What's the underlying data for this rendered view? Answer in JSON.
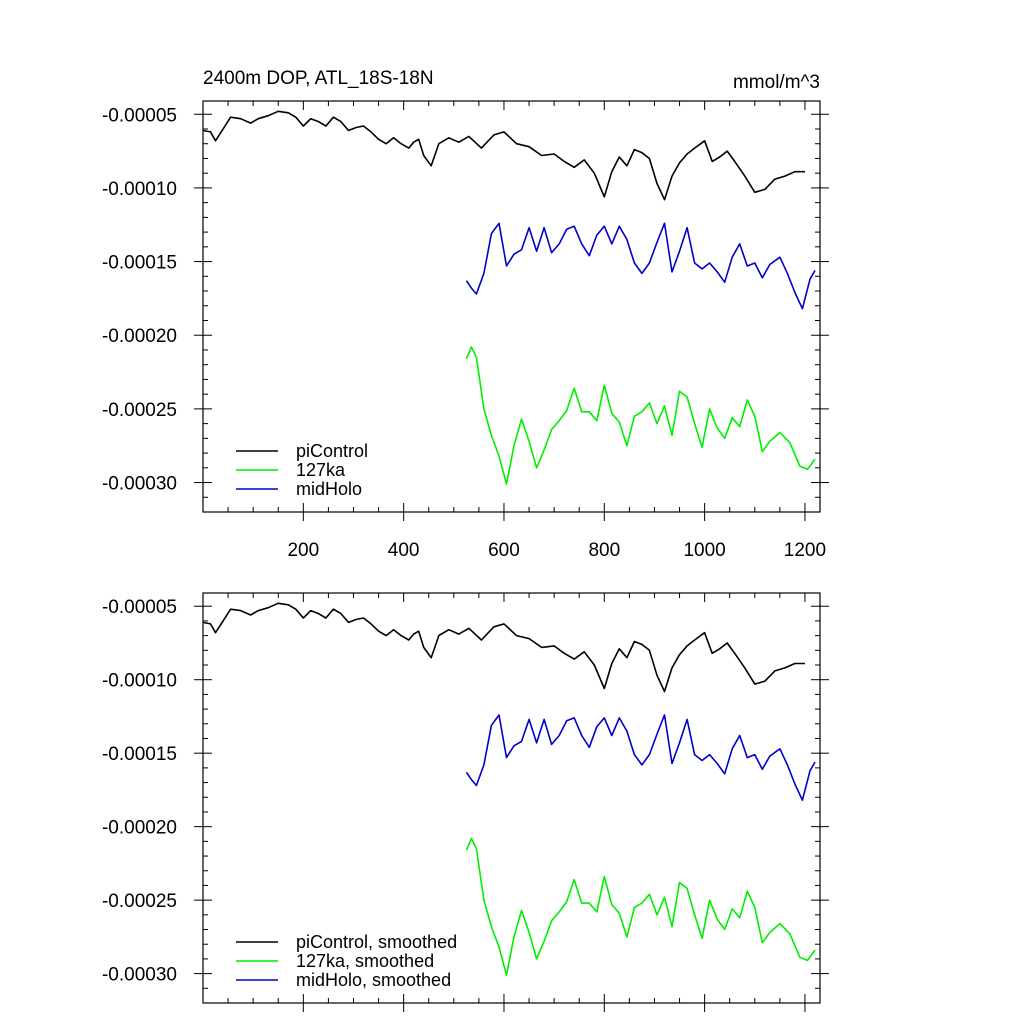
{
  "chart_data": [
    {
      "type": "line",
      "title": "2400m DOP, ATL_18S-18N",
      "units": "mmol/m^3",
      "xlabel": "",
      "ylabel": "",
      "xlim": [
        0,
        1230
      ],
      "ylim": [
        -0.00032,
        -4.1e-05
      ],
      "xticks": [
        200,
        400,
        600,
        800,
        1000,
        1200
      ],
      "xtick_labels": [
        "200",
        "400",
        "600",
        "800",
        "1000",
        "1200"
      ],
      "yticks": [
        -5e-05,
        -0.0001,
        -0.00015,
        -0.0002,
        -0.00025,
        -0.0003
      ],
      "ytick_labels": [
        "-0.00005",
        "-0.00010",
        "-0.00015",
        "-0.00020",
        "-0.00025",
        "-0.00030"
      ],
      "grid": false,
      "legend_position": "bottom-left",
      "series": [
        {
          "name": "piControl",
          "color": "#000000",
          "x": [
            0,
            15,
            25,
            40,
            55,
            75,
            95,
            110,
            130,
            150,
            170,
            185,
            200,
            215,
            230,
            245,
            260,
            275,
            290,
            305,
            320,
            335,
            350,
            365,
            380,
            395,
            410,
            420,
            430,
            440,
            455,
            470,
            490,
            510,
            530,
            555,
            580,
            600,
            625,
            650,
            675,
            700,
            720,
            740,
            760,
            780,
            800,
            815,
            830,
            845,
            860,
            875,
            890,
            905,
            920,
            935,
            950,
            965,
            980,
            1000,
            1015,
            1030,
            1045,
            1060,
            1080,
            1100,
            1120,
            1140,
            1160,
            1180,
            1200
          ],
          "y": [
            -6.1e-05,
            -6.2e-05,
            -6.8e-05,
            -6e-05,
            -5.2e-05,
            -5.3e-05,
            -5.6e-05,
            -5.3e-05,
            -5.1e-05,
            -4.8e-05,
            -4.9e-05,
            -5.2e-05,
            -5.8e-05,
            -5.3e-05,
            -5.5e-05,
            -5.8e-05,
            -5.2e-05,
            -5.5e-05,
            -6.1e-05,
            -5.9e-05,
            -5.8e-05,
            -6.2e-05,
            -6.7e-05,
            -7e-05,
            -6.6e-05,
            -7e-05,
            -7.3e-05,
            -6.9e-05,
            -6.7e-05,
            -7.8e-05,
            -8.5e-05,
            -7e-05,
            -6.6e-05,
            -6.9e-05,
            -6.5e-05,
            -7.3e-05,
            -6.4e-05,
            -6.2e-05,
            -7e-05,
            -7.2e-05,
            -7.8e-05,
            -7.7e-05,
            -8.2e-05,
            -8.6e-05,
            -8.1e-05,
            -9e-05,
            -0.000106,
            -8.9e-05,
            -7.9e-05,
            -8.5e-05,
            -7.4e-05,
            -7.6e-05,
            -8e-05,
            -9.7e-05,
            -0.000108,
            -9.2e-05,
            -8.3e-05,
            -7.7e-05,
            -7.3e-05,
            -6.8e-05,
            -8.2e-05,
            -7.9e-05,
            -7.5e-05,
            -8.2e-05,
            -9.2e-05,
            -0.000103,
            -0.000101,
            -9.4e-05,
            -9.2e-05,
            -8.9e-05,
            -8.9e-05
          ]
        },
        {
          "name": "127ka",
          "color": "#00ee00",
          "x": [
            525,
            535,
            545,
            560,
            575,
            590,
            605,
            620,
            635,
            650,
            665,
            680,
            695,
            710,
            725,
            740,
            755,
            770,
            785,
            800,
            815,
            830,
            845,
            860,
            875,
            890,
            905,
            920,
            935,
            950,
            965,
            980,
            995,
            1010,
            1025,
            1040,
            1055,
            1070,
            1085,
            1100,
            1115,
            1130,
            1150,
            1170,
            1190,
            1205,
            1220
          ],
          "y": [
            -0.000216,
            -0.000208,
            -0.000215,
            -0.00025,
            -0.000268,
            -0.000282,
            -0.000301,
            -0.000275,
            -0.000257,
            -0.000272,
            -0.00029,
            -0.000278,
            -0.000264,
            -0.000258,
            -0.000251,
            -0.000236,
            -0.000252,
            -0.000252,
            -0.000258,
            -0.000234,
            -0.000253,
            -0.000259,
            -0.000275,
            -0.000255,
            -0.000252,
            -0.000246,
            -0.00026,
            -0.000248,
            -0.000268,
            -0.000238,
            -0.000242,
            -0.00026,
            -0.000276,
            -0.00025,
            -0.000263,
            -0.00027,
            -0.000256,
            -0.000262,
            -0.000244,
            -0.000255,
            -0.000279,
            -0.000272,
            -0.000266,
            -0.000273,
            -0.000289,
            -0.000291,
            -0.000284
          ]
        },
        {
          "name": "midHolo",
          "color": "#0000cc",
          "x": [
            525,
            535,
            545,
            560,
            575,
            590,
            605,
            620,
            635,
            650,
            665,
            680,
            695,
            710,
            725,
            740,
            755,
            770,
            785,
            800,
            815,
            830,
            845,
            860,
            875,
            890,
            905,
            920,
            935,
            950,
            965,
            980,
            995,
            1010,
            1025,
            1040,
            1055,
            1070,
            1085,
            1100,
            1115,
            1130,
            1150,
            1165,
            1180,
            1195,
            1210,
            1220
          ],
          "y": [
            -0.000163,
            -0.000168,
            -0.000172,
            -0.000158,
            -0.000131,
            -0.000124,
            -0.000153,
            -0.000145,
            -0.000142,
            -0.000127,
            -0.000143,
            -0.000127,
            -0.000144,
            -0.000138,
            -0.000128,
            -0.000126,
            -0.000138,
            -0.000146,
            -0.000132,
            -0.000126,
            -0.000138,
            -0.000126,
            -0.000135,
            -0.000151,
            -0.000158,
            -0.000151,
            -0.000137,
            -0.000124,
            -0.000157,
            -0.000143,
            -0.000127,
            -0.000151,
            -0.000155,
            -0.000151,
            -0.000157,
            -0.000164,
            -0.000147,
            -0.000138,
            -0.000153,
            -0.000151,
            -0.000161,
            -0.000152,
            -0.000147,
            -0.000158,
            -0.000171,
            -0.000182,
            -0.000162,
            -0.000156
          ]
        }
      ]
    },
    {
      "type": "line",
      "title": "",
      "xlabel": "",
      "ylabel": "",
      "xlim": [
        0,
        1230
      ],
      "ylim": [
        -0.00032,
        -4.1e-05
      ],
      "xticks": [
        200,
        400,
        600,
        800,
        1000,
        1200
      ],
      "yticks": [
        -5e-05,
        -0.0001,
        -0.00015,
        -0.0002,
        -0.00025,
        -0.0003
      ],
      "ytick_labels": [
        "-0.00005",
        "-0.00010",
        "-0.00015",
        "-0.00020",
        "-0.00025",
        "-0.00030"
      ],
      "grid": false,
      "legend_position": "bottom-left",
      "series": [
        {
          "name": "piControl, smoothed",
          "color": "#000000",
          "x": [
            0,
            15,
            25,
            40,
            55,
            75,
            95,
            110,
            130,
            150,
            170,
            185,
            200,
            215,
            230,
            245,
            260,
            275,
            290,
            305,
            320,
            335,
            350,
            365,
            380,
            395,
            410,
            420,
            430,
            440,
            455,
            470,
            490,
            510,
            530,
            555,
            580,
            600,
            625,
            650,
            675,
            700,
            720,
            740,
            760,
            780,
            800,
            815,
            830,
            845,
            860,
            875,
            890,
            905,
            920,
            935,
            950,
            965,
            980,
            1000,
            1015,
            1030,
            1045,
            1060,
            1080,
            1100,
            1120,
            1140,
            1160,
            1180,
            1200
          ],
          "y": [
            -6.1e-05,
            -6.2e-05,
            -6.8e-05,
            -6e-05,
            -5.2e-05,
            -5.3e-05,
            -5.6e-05,
            -5.3e-05,
            -5.1e-05,
            -4.8e-05,
            -4.9e-05,
            -5.2e-05,
            -5.8e-05,
            -5.3e-05,
            -5.5e-05,
            -5.8e-05,
            -5.2e-05,
            -5.5e-05,
            -6.1e-05,
            -5.9e-05,
            -5.8e-05,
            -6.2e-05,
            -6.7e-05,
            -7e-05,
            -6.6e-05,
            -7e-05,
            -7.3e-05,
            -6.9e-05,
            -6.7e-05,
            -7.8e-05,
            -8.5e-05,
            -7e-05,
            -6.6e-05,
            -6.9e-05,
            -6.5e-05,
            -7.3e-05,
            -6.4e-05,
            -6.2e-05,
            -7e-05,
            -7.2e-05,
            -7.8e-05,
            -7.7e-05,
            -8.2e-05,
            -8.6e-05,
            -8.1e-05,
            -9e-05,
            -0.000106,
            -8.9e-05,
            -7.9e-05,
            -8.5e-05,
            -7.4e-05,
            -7.6e-05,
            -8e-05,
            -9.7e-05,
            -0.000108,
            -9.2e-05,
            -8.3e-05,
            -7.7e-05,
            -7.3e-05,
            -6.8e-05,
            -8.2e-05,
            -7.9e-05,
            -7.5e-05,
            -8.2e-05,
            -9.2e-05,
            -0.000103,
            -0.000101,
            -9.4e-05,
            -9.2e-05,
            -8.9e-05,
            -8.9e-05
          ]
        },
        {
          "name": "127ka, smoothed",
          "color": "#00ee00",
          "x": [
            525,
            535,
            545,
            560,
            575,
            590,
            605,
            620,
            635,
            650,
            665,
            680,
            695,
            710,
            725,
            740,
            755,
            770,
            785,
            800,
            815,
            830,
            845,
            860,
            875,
            890,
            905,
            920,
            935,
            950,
            965,
            980,
            995,
            1010,
            1025,
            1040,
            1055,
            1070,
            1085,
            1100,
            1115,
            1130,
            1150,
            1170,
            1190,
            1205,
            1220
          ],
          "y": [
            -0.000216,
            -0.000208,
            -0.000215,
            -0.00025,
            -0.000268,
            -0.000282,
            -0.000301,
            -0.000275,
            -0.000257,
            -0.000272,
            -0.00029,
            -0.000278,
            -0.000264,
            -0.000258,
            -0.000251,
            -0.000236,
            -0.000252,
            -0.000252,
            -0.000258,
            -0.000234,
            -0.000253,
            -0.000259,
            -0.000275,
            -0.000255,
            -0.000252,
            -0.000246,
            -0.00026,
            -0.000248,
            -0.000268,
            -0.000238,
            -0.000242,
            -0.00026,
            -0.000276,
            -0.00025,
            -0.000263,
            -0.00027,
            -0.000256,
            -0.000262,
            -0.000244,
            -0.000255,
            -0.000279,
            -0.000272,
            -0.000266,
            -0.000273,
            -0.000289,
            -0.000291,
            -0.000284
          ]
        },
        {
          "name": "midHolo, smoothed",
          "color": "#0000cc",
          "x": [
            525,
            535,
            545,
            560,
            575,
            590,
            605,
            620,
            635,
            650,
            665,
            680,
            695,
            710,
            725,
            740,
            755,
            770,
            785,
            800,
            815,
            830,
            845,
            860,
            875,
            890,
            905,
            920,
            935,
            950,
            965,
            980,
            995,
            1010,
            1025,
            1040,
            1055,
            1070,
            1085,
            1100,
            1115,
            1130,
            1150,
            1165,
            1180,
            1195,
            1210,
            1220
          ],
          "y": [
            -0.000163,
            -0.000168,
            -0.000172,
            -0.000158,
            -0.000131,
            -0.000124,
            -0.000153,
            -0.000145,
            -0.000142,
            -0.000127,
            -0.000143,
            -0.000127,
            -0.000144,
            -0.000138,
            -0.000128,
            -0.000126,
            -0.000138,
            -0.000146,
            -0.000132,
            -0.000126,
            -0.000138,
            -0.000126,
            -0.000135,
            -0.000151,
            -0.000158,
            -0.000151,
            -0.000137,
            -0.000124,
            -0.000157,
            -0.000143,
            -0.000127,
            -0.000151,
            -0.000155,
            -0.000151,
            -0.000157,
            -0.000164,
            -0.000147,
            -0.000138,
            -0.000153,
            -0.000151,
            -0.000161,
            -0.000152,
            -0.000147,
            -0.000158,
            -0.000171,
            -0.000182,
            -0.000162,
            -0.000156
          ]
        }
      ]
    }
  ]
}
